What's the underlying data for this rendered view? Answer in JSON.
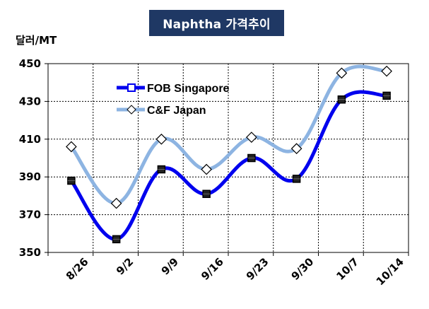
{
  "chart_data": {
    "type": "line",
    "title": "Naphtha 가격추이",
    "ylabel": "달러/MT",
    "xlabel": "",
    "categories": [
      "8/26",
      "9/2",
      "9/9",
      "9/16",
      "9/23",
      "9/30",
      "10/7",
      "10/14"
    ],
    "ylim": [
      350,
      450
    ],
    "yticks": [
      350,
      370,
      390,
      410,
      430,
      450
    ],
    "grid": true,
    "legend_position": "upper-left",
    "series": [
      {
        "name": "FOB Singapore",
        "values": [
          388,
          357,
          394,
          381,
          400,
          389,
          431,
          433
        ],
        "color": "#0000ee",
        "marker": "square"
      },
      {
        "name": "C&F Japan",
        "values": [
          406,
          376,
          410,
          394,
          411,
          405,
          445,
          446
        ],
        "color": "#8db4e2",
        "marker": "diamond"
      }
    ]
  }
}
